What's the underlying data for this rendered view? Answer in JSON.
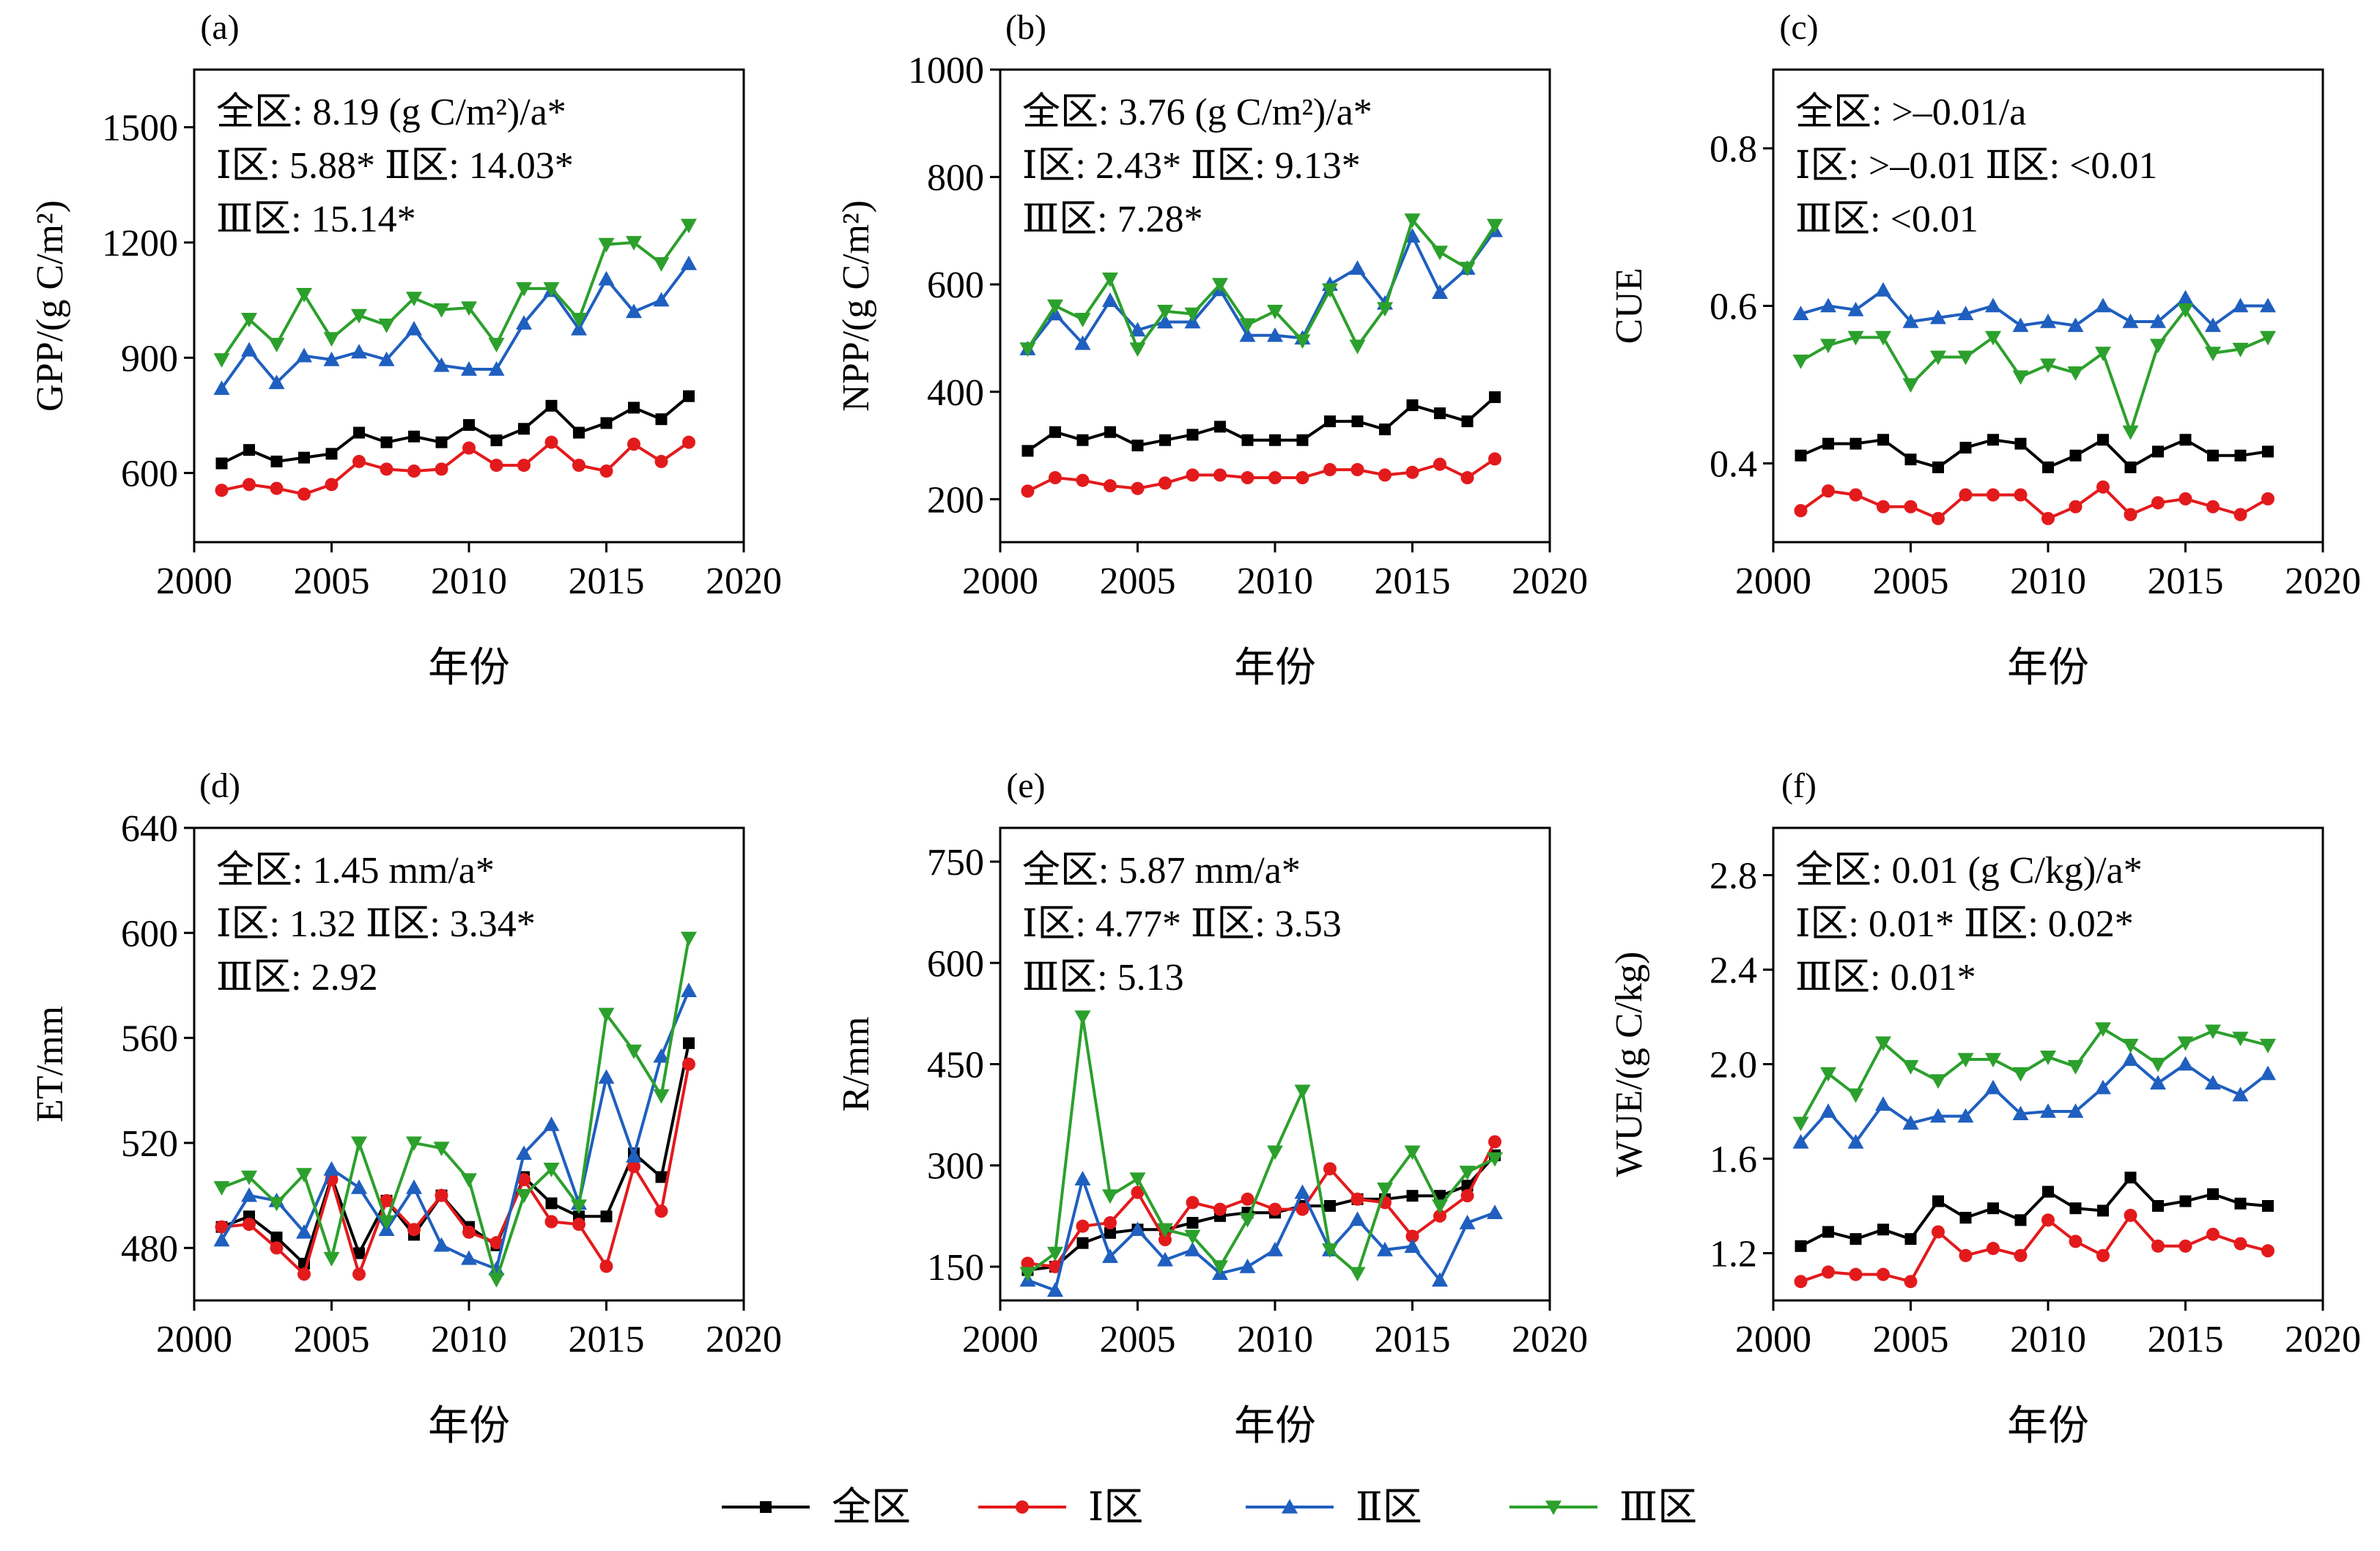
{
  "figure": {
    "legend": [
      {
        "label": "全区",
        "color": "#000000",
        "marker": "square"
      },
      {
        "label": "Ⅰ区",
        "color": "#e31a1c",
        "marker": "circle"
      },
      {
        "label": "Ⅱ区",
        "color": "#1f5fbf",
        "marker": "triangle-up"
      },
      {
        "label": "Ⅲ区",
        "color": "#2ca02c",
        "marker": "triangle-down"
      }
    ]
  },
  "chart_data": [
    {
      "panel": "(a)",
      "type": "line",
      "xlabel": "年份",
      "ylabel": "GPP/(g C/m²)",
      "xlim": [
        2000,
        2020
      ],
      "ylim": [
        420,
        1650
      ],
      "xticks": [
        2000,
        2005,
        2010,
        2015,
        2020
      ],
      "yticks": [
        600,
        900,
        1200,
        1500
      ],
      "annotations": [
        "全区: 8.19 (g C/m²)/a*",
        "Ⅰ区: 5.88* Ⅱ区: 14.03*",
        "Ⅲ区: 15.14*"
      ],
      "x": [
        2001,
        2002,
        2003,
        2004,
        2005,
        2006,
        2007,
        2008,
        2009,
        2010,
        2011,
        2012,
        2013,
        2014,
        2015,
        2016,
        2017,
        2018
      ],
      "series": [
        {
          "name": "全区",
          "values": [
            625,
            660,
            630,
            640,
            650,
            705,
            680,
            695,
            680,
            725,
            685,
            715,
            775,
            705,
            730,
            770,
            740,
            800
          ]
        },
        {
          "name": "Ⅰ区",
          "values": [
            555,
            570,
            560,
            545,
            570,
            630,
            610,
            605,
            610,
            665,
            620,
            620,
            680,
            620,
            605,
            675,
            630,
            680
          ]
        },
        {
          "name": "Ⅱ区",
          "values": [
            820,
            920,
            835,
            905,
            895,
            915,
            895,
            975,
            880,
            870,
            870,
            990,
            1075,
            975,
            1105,
            1020,
            1050,
            1145
          ]
        },
        {
          "name": "Ⅲ区",
          "values": [
            895,
            1000,
            935,
            1065,
            950,
            1010,
            985,
            1055,
            1025,
            1030,
            935,
            1080,
            1080,
            1000,
            1195,
            1200,
            1145,
            1245
          ]
        }
      ]
    },
    {
      "panel": "(b)",
      "type": "line",
      "xlabel": "年份",
      "ylabel": "NPP/(g C/m²)",
      "xlim": [
        2000,
        2020
      ],
      "ylim": [
        120,
        1000
      ],
      "xticks": [
        2000,
        2005,
        2010,
        2015,
        2020
      ],
      "yticks": [
        200,
        400,
        600,
        800,
        1000
      ],
      "annotations": [
        "全区: 3.76 (g C/m²)/a*",
        "Ⅰ区: 2.43* Ⅱ区: 9.13*",
        "Ⅲ区: 7.28*"
      ],
      "x": [
        2001,
        2002,
        2003,
        2004,
        2005,
        2006,
        2007,
        2008,
        2009,
        2010,
        2011,
        2012,
        2013,
        2014,
        2015,
        2016,
        2017,
        2018
      ],
      "series": [
        {
          "name": "全区",
          "values": [
            290,
            325,
            310,
            325,
            300,
            310,
            320,
            335,
            310,
            310,
            310,
            345,
            345,
            330,
            375,
            360,
            345,
            390
          ]
        },
        {
          "name": "Ⅰ区",
          "values": [
            215,
            240,
            235,
            225,
            220,
            230,
            245,
            245,
            240,
            240,
            240,
            255,
            255,
            245,
            250,
            265,
            240,
            275
          ]
        },
        {
          "name": "Ⅱ区",
          "values": [
            480,
            545,
            490,
            570,
            515,
            530,
            530,
            590,
            505,
            505,
            500,
            600,
            630,
            565,
            690,
            585,
            630,
            700
          ]
        },
        {
          "name": "Ⅲ区",
          "values": [
            480,
            560,
            535,
            610,
            480,
            550,
            545,
            600,
            525,
            550,
            495,
            590,
            485,
            555,
            720,
            660,
            630,
            710
          ]
        }
      ]
    },
    {
      "panel": "(c)",
      "type": "line",
      "xlabel": "年份",
      "ylabel": "CUE",
      "xlim": [
        2000,
        2020
      ],
      "ylim": [
        0.3,
        0.9
      ],
      "xticks": [
        2000,
        2005,
        2010,
        2015,
        2020
      ],
      "yticks": [
        0.4,
        0.6,
        0.8
      ],
      "annotations": [
        "全区: >–0.01/a",
        "Ⅰ区: >–0.01 Ⅱ区: <0.01",
        "Ⅲ区: <0.01"
      ],
      "x": [
        2001,
        2002,
        2003,
        2004,
        2005,
        2006,
        2007,
        2008,
        2009,
        2010,
        2011,
        2012,
        2013,
        2014,
        2015,
        2016,
        2017,
        2018
      ],
      "series": [
        {
          "name": "全区",
          "values": [
            0.41,
            0.425,
            0.425,
            0.43,
            0.405,
            0.395,
            0.42,
            0.43,
            0.425,
            0.395,
            0.41,
            0.43,
            0.395,
            0.415,
            0.43,
            0.41,
            0.41,
            0.415
          ]
        },
        {
          "name": "Ⅰ区",
          "values": [
            0.34,
            0.365,
            0.36,
            0.345,
            0.345,
            0.33,
            0.36,
            0.36,
            0.36,
            0.33,
            0.345,
            0.37,
            0.335,
            0.35,
            0.355,
            0.345,
            0.335,
            0.355
          ]
        },
        {
          "name": "Ⅱ区",
          "values": [
            0.59,
            0.6,
            0.595,
            0.62,
            0.58,
            0.585,
            0.59,
            0.6,
            0.575,
            0.58,
            0.575,
            0.6,
            0.58,
            0.58,
            0.61,
            0.575,
            0.6,
            0.6
          ]
        },
        {
          "name": "Ⅲ区",
          "values": [
            0.53,
            0.55,
            0.56,
            0.56,
            0.5,
            0.535,
            0.535,
            0.56,
            0.51,
            0.525,
            0.515,
            0.54,
            0.44,
            0.55,
            0.595,
            0.54,
            0.545,
            0.56
          ]
        }
      ]
    },
    {
      "panel": "(d)",
      "type": "line",
      "xlabel": "年份",
      "ylabel": "ET/mm",
      "xlim": [
        2000,
        2020
      ],
      "ylim": [
        460,
        640
      ],
      "xticks": [
        2000,
        2005,
        2010,
        2015,
        2020
      ],
      "yticks": [
        480,
        520,
        560,
        600,
        640
      ],
      "annotations": [
        "全区: 1.45 mm/a*",
        "Ⅰ区: 1.32 Ⅱ区: 3.34*",
        "Ⅲ区: 2.92"
      ],
      "x": [
        2001,
        2002,
        2003,
        2004,
        2005,
        2006,
        2007,
        2008,
        2009,
        2010,
        2011,
        2012,
        2013,
        2014,
        2015,
        2016,
        2017,
        2018
      ],
      "series": [
        {
          "name": "全区",
          "values": [
            488,
            492,
            484,
            474,
            507,
            478,
            498,
            485,
            500,
            488,
            481,
            507,
            497,
            492,
            492,
            516,
            507,
            558
          ]
        },
        {
          "name": "Ⅰ区",
          "values": [
            488,
            489,
            480,
            470,
            506,
            470,
            498,
            487,
            500,
            486,
            482,
            506,
            490,
            489,
            473,
            511,
            494,
            550
          ]
        },
        {
          "name": "Ⅱ区",
          "values": [
            483,
            500,
            498,
            486,
            510,
            503,
            487,
            503,
            481,
            476,
            472,
            516,
            527,
            497,
            545,
            515,
            553,
            578
          ]
        },
        {
          "name": "Ⅲ区",
          "values": [
            503,
            507,
            497,
            508,
            476,
            520,
            490,
            520,
            518,
            506,
            468,
            500,
            510,
            496,
            569,
            555,
            538,
            598
          ]
        }
      ]
    },
    {
      "panel": "(e)",
      "type": "line",
      "xlabel": "年份",
      "ylabel": "R/mm",
      "xlim": [
        2000,
        2020
      ],
      "ylim": [
        100,
        800
      ],
      "xticks": [
        2000,
        2005,
        2010,
        2015,
        2020
      ],
      "yticks": [
        150,
        300,
        450,
        600,
        750
      ],
      "annotations": [
        "全区: 5.87 mm/a*",
        "Ⅰ区: 4.77* Ⅱ区: 3.53",
        "Ⅲ区: 5.13"
      ],
      "x": [
        2001,
        2002,
        2003,
        2004,
        2005,
        2006,
        2007,
        2008,
        2009,
        2010,
        2011,
        2012,
        2013,
        2014,
        2015,
        2016,
        2017,
        2018
      ],
      "series": [
        {
          "name": "全区",
          "values": [
            145,
            150,
            185,
            200,
            205,
            205,
            215,
            225,
            230,
            230,
            240,
            240,
            250,
            250,
            255,
            255,
            270,
            315
          ]
        },
        {
          "name": "Ⅰ区",
          "values": [
            155,
            150,
            210,
            215,
            260,
            190,
            245,
            235,
            250,
            235,
            235,
            295,
            250,
            245,
            195,
            225,
            255,
            335
          ]
        },
        {
          "name": "Ⅱ区",
          "values": [
            130,
            115,
            280,
            165,
            205,
            160,
            175,
            140,
            150,
            175,
            260,
            175,
            220,
            175,
            180,
            130,
            215,
            230
          ]
        },
        {
          "name": "Ⅲ区",
          "values": [
            140,
            170,
            520,
            255,
            280,
            205,
            195,
            150,
            220,
            320,
            410,
            175,
            140,
            265,
            320,
            240,
            290,
            310
          ]
        }
      ]
    },
    {
      "panel": "(f)",
      "type": "line",
      "xlabel": "年份",
      "ylabel": "WUE/(g C/kg)",
      "xlim": [
        2000,
        2020
      ],
      "ylim": [
        1.0,
        3.0
      ],
      "xticks": [
        2000,
        2005,
        2010,
        2015,
        2020
      ],
      "yticks": [
        1.2,
        1.6,
        2.0,
        2.4,
        2.8
      ],
      "annotations": [
        "全区: 0.01 (g C/kg)/a*",
        "Ⅰ区: 0.01* Ⅱ区: 0.02*",
        "Ⅲ区: 0.01*"
      ],
      "x": [
        2001,
        2002,
        2003,
        2004,
        2005,
        2006,
        2007,
        2008,
        2009,
        2010,
        2011,
        2012,
        2013,
        2014,
        2015,
        2016,
        2017,
        2018
      ],
      "series": [
        {
          "name": "全区",
          "values": [
            1.23,
            1.29,
            1.26,
            1.3,
            1.26,
            1.42,
            1.35,
            1.39,
            1.34,
            1.46,
            1.39,
            1.38,
            1.52,
            1.4,
            1.42,
            1.45,
            1.41,
            1.4
          ]
        },
        {
          "name": "Ⅰ区",
          "values": [
            1.08,
            1.12,
            1.11,
            1.11,
            1.08,
            1.29,
            1.19,
            1.22,
            1.19,
            1.34,
            1.25,
            1.19,
            1.36,
            1.23,
            1.23,
            1.28,
            1.24,
            1.21
          ]
        },
        {
          "name": "Ⅱ区",
          "values": [
            1.67,
            1.8,
            1.67,
            1.83,
            1.75,
            1.78,
            1.78,
            1.9,
            1.79,
            1.8,
            1.8,
            1.9,
            2.02,
            1.92,
            2.0,
            1.92,
            1.87,
            1.96
          ]
        },
        {
          "name": "Ⅲ区",
          "values": [
            1.75,
            1.96,
            1.87,
            2.09,
            1.99,
            1.93,
            2.02,
            2.02,
            1.96,
            2.03,
            1.99,
            2.15,
            2.08,
            2.0,
            2.09,
            2.14,
            2.11,
            2.08
          ]
        }
      ]
    }
  ]
}
